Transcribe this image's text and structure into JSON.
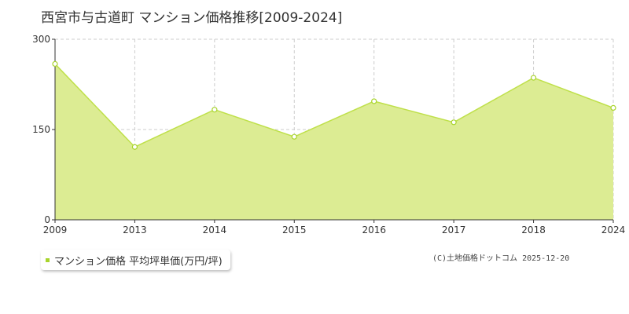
{
  "title": "西宮市与古道町 マンション価格推移[2009-2024]",
  "legend": {
    "label": "マンション価格 平均坪単価(万円/坪)"
  },
  "source": "(C)土地価格ドットコム 2025-12-20",
  "colors": {
    "fill": "#dcec93",
    "line": "#bfe04a",
    "marker": "#a8d42c",
    "grid": "#cccccc"
  },
  "chart_data": {
    "type": "area",
    "title": "西宮市与古道町 マンション価格推移[2009-2024]",
    "xlabel": "",
    "ylabel": "",
    "categories": [
      "2009",
      "2013",
      "2014",
      "2015",
      "2016",
      "2017",
      "2018",
      "2024"
    ],
    "series": [
      {
        "name": "マンション価格 平均坪単価(万円/坪)",
        "values": [
          259,
          121,
          183,
          138,
          197,
          162,
          236,
          186
        ]
      }
    ],
    "ylim": [
      0,
      300
    ],
    "yticks": [
      0,
      150,
      300
    ],
    "grid": true,
    "legend_position": "bottom-left"
  }
}
